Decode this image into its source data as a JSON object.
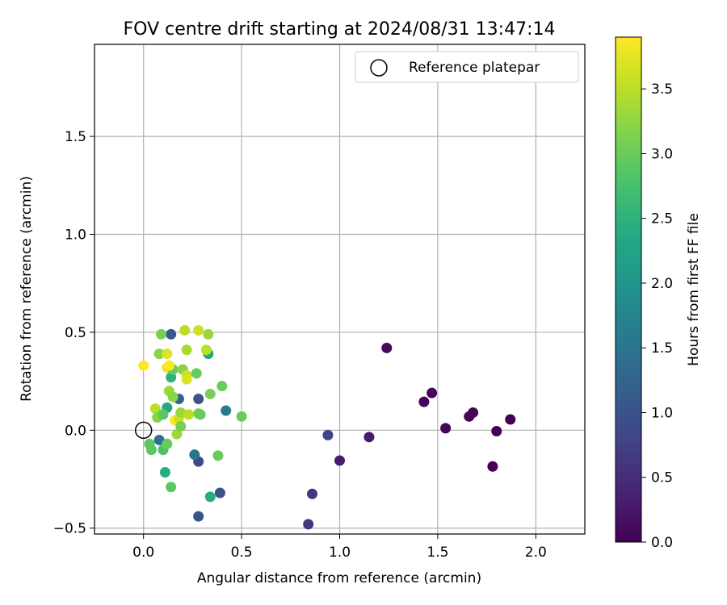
{
  "chart_data": {
    "type": "scatter",
    "title": "FOV centre drift starting at 2024/08/31 13:47:14",
    "xlabel": "Angular distance from reference (arcmin)",
    "ylabel": "Rotation from reference (arcmin)",
    "xlim": [
      -0.25,
      2.25
    ],
    "ylim": [
      -0.53,
      1.97
    ],
    "xticks": [
      0.0,
      0.5,
      1.0,
      1.5,
      2.0
    ],
    "xtick_labels": [
      "0.0",
      "0.5",
      "1.0",
      "1.5",
      "2.0"
    ],
    "yticks": [
      -0.5,
      0.0,
      0.5,
      1.0,
      1.5
    ],
    "ytick_labels": [
      "−0.5",
      "0.0",
      "0.5",
      "1.0",
      "1.5"
    ],
    "grid": true,
    "legend": {
      "placement": "top-right",
      "entries": [
        {
          "label": "Reference platepar",
          "marker": "open-circle"
        }
      ]
    },
    "reference_point": {
      "x": 0.0,
      "y": 0.0
    },
    "colorbar": {
      "label": "Hours from first FF file",
      "colormap": "viridis",
      "range": [
        0.0,
        3.9
      ],
      "ticks": [
        0.0,
        0.5,
        1.0,
        1.5,
        2.0,
        2.5,
        3.0,
        3.5
      ],
      "tick_labels": [
        "0.0",
        "0.5",
        "1.0",
        "1.5",
        "2.0",
        "2.5",
        "3.0",
        "3.5"
      ]
    },
    "points": [
      {
        "x": 1.24,
        "y": 0.42,
        "c": 0.1
      },
      {
        "x": 1.43,
        "y": 0.145,
        "c": 0.05
      },
      {
        "x": 1.47,
        "y": 0.19,
        "c": 0.05
      },
      {
        "x": 1.54,
        "y": 0.01,
        "c": 0.05
      },
      {
        "x": 1.66,
        "y": 0.07,
        "c": 0.05
      },
      {
        "x": 1.68,
        "y": 0.09,
        "c": 0.05
      },
      {
        "x": 1.8,
        "y": -0.005,
        "c": 0.0
      },
      {
        "x": 1.87,
        "y": 0.055,
        "c": 0.0
      },
      {
        "x": 1.78,
        "y": -0.185,
        "c": 0.0
      },
      {
        "x": 1.15,
        "y": -0.035,
        "c": 0.3
      },
      {
        "x": 1.0,
        "y": -0.155,
        "c": 0.3
      },
      {
        "x": 0.94,
        "y": -0.025,
        "c": 0.8
      },
      {
        "x": 0.86,
        "y": -0.325,
        "c": 0.6
      },
      {
        "x": 0.84,
        "y": -0.48,
        "c": 0.6
      },
      {
        "x": 0.39,
        "y": -0.32,
        "c": 1.0
      },
      {
        "x": 0.28,
        "y": -0.44,
        "c": 1.0
      },
      {
        "x": 0.28,
        "y": -0.16,
        "c": 0.9
      },
      {
        "x": 0.26,
        "y": -0.125,
        "c": 1.5
      },
      {
        "x": 0.34,
        "y": -0.34,
        "c": 2.4
      },
      {
        "x": 0.14,
        "y": -0.29,
        "c": 2.9
      },
      {
        "x": 0.11,
        "y": -0.215,
        "c": 2.4
      },
      {
        "x": 0.08,
        "y": -0.05,
        "c": 1.4
      },
      {
        "x": 0.03,
        "y": -0.07,
        "c": 2.9
      },
      {
        "x": 0.04,
        "y": -0.1,
        "c": 2.9
      },
      {
        "x": 0.1,
        "y": -0.1,
        "c": 2.8
      },
      {
        "x": 0.12,
        "y": -0.07,
        "c": 3.0
      },
      {
        "x": 0.38,
        "y": -0.13,
        "c": 3.0
      },
      {
        "x": 0.17,
        "y": -0.02,
        "c": 3.3
      },
      {
        "x": 0.14,
        "y": 0.49,
        "c": 1.1
      },
      {
        "x": 0.33,
        "y": 0.39,
        "c": 2.3
      },
      {
        "x": 0.42,
        "y": 0.1,
        "c": 1.6
      },
      {
        "x": 0.14,
        "y": 0.27,
        "c": 2.5
      },
      {
        "x": 0.18,
        "y": 0.16,
        "c": 1.2
      },
      {
        "x": 0.28,
        "y": 0.16,
        "c": 1.0
      },
      {
        "x": 0.12,
        "y": 0.115,
        "c": 2.3
      },
      {
        "x": 0.08,
        "y": 0.39,
        "c": 3.2
      },
      {
        "x": 0.09,
        "y": 0.49,
        "c": 3.1
      },
      {
        "x": 0.21,
        "y": 0.51,
        "c": 3.5
      },
      {
        "x": 0.28,
        "y": 0.51,
        "c": 3.6
      },
      {
        "x": 0.33,
        "y": 0.49,
        "c": 3.3
      },
      {
        "x": 0.22,
        "y": 0.41,
        "c": 3.4
      },
      {
        "x": 0.32,
        "y": 0.41,
        "c": 3.5
      },
      {
        "x": 0.12,
        "y": 0.39,
        "c": 3.7
      },
      {
        "x": 0.12,
        "y": 0.32,
        "c": 3.8
      },
      {
        "x": 0.15,
        "y": 0.31,
        "c": 3.0
      },
      {
        "x": 0.2,
        "y": 0.31,
        "c": 3.2
      },
      {
        "x": 0.22,
        "y": 0.28,
        "c": 3.6
      },
      {
        "x": 0.22,
        "y": 0.26,
        "c": 3.7
      },
      {
        "x": 0.27,
        "y": 0.29,
        "c": 3.0
      },
      {
        "x": 0.4,
        "y": 0.225,
        "c": 3.0
      },
      {
        "x": 0.34,
        "y": 0.185,
        "c": 3.1
      },
      {
        "x": 0.13,
        "y": 0.33,
        "c": 3.9
      },
      {
        "x": 0.13,
        "y": 0.2,
        "c": 3.3
      },
      {
        "x": 0.15,
        "y": 0.17,
        "c": 3.2
      },
      {
        "x": 0.06,
        "y": 0.11,
        "c": 3.5
      },
      {
        "x": 0.08,
        "y": 0.08,
        "c": 3.4
      },
      {
        "x": 0.07,
        "y": 0.065,
        "c": 3.2
      },
      {
        "x": 0.1,
        "y": 0.08,
        "c": 2.9
      },
      {
        "x": 0.16,
        "y": 0.05,
        "c": 3.9
      },
      {
        "x": 0.18,
        "y": 0.06,
        "c": 3.6
      },
      {
        "x": 0.19,
        "y": 0.09,
        "c": 3.3
      },
      {
        "x": 0.23,
        "y": 0.08,
        "c": 3.5
      },
      {
        "x": 0.28,
        "y": 0.085,
        "c": 3.1
      },
      {
        "x": 0.29,
        "y": 0.08,
        "c": 3.0
      },
      {
        "x": 0.19,
        "y": 0.02,
        "c": 3.1
      },
      {
        "x": 0.5,
        "y": 0.07,
        "c": 3.0
      },
      {
        "x": 0.0,
        "y": 0.33,
        "c": 3.9
      }
    ]
  }
}
